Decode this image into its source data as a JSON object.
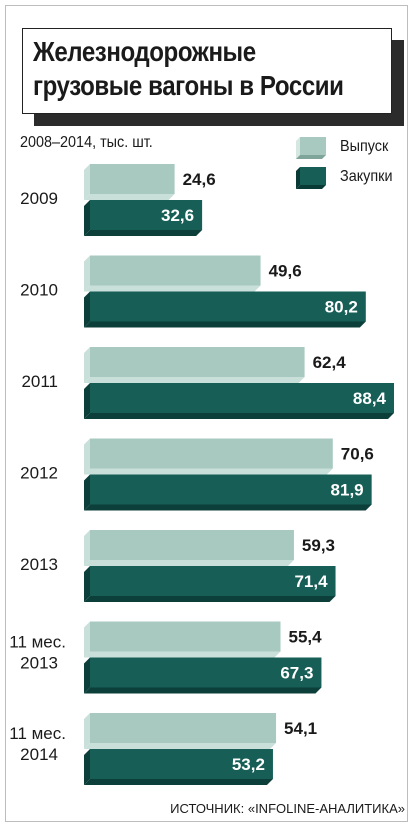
{
  "title_line1": "Железнодорожные",
  "title_line2": "грузовые вагоны в России",
  "subtitle": "2008–2014, тыс. шт.",
  "source": "ИСТОЧНИК: «INFOLINE-АНАЛИТИКА»",
  "colors": {
    "release": "#a8c9c0",
    "purchase": "#165e56",
    "release_side": "#c9dfd9",
    "purchase_side": "#0c3f3a"
  },
  "legend": [
    {
      "name": "Выпуск",
      "color": "#a8c9c0"
    },
    {
      "name": "Закупки",
      "color": "#165e56"
    }
  ],
  "chart_data": {
    "type": "bar",
    "orientation": "horizontal",
    "title": "Железнодорожные грузовые вагоны в России",
    "subtitle": "2008–2014, тыс. шт.",
    "categories": [
      {
        "line1": "2009",
        "line2": ""
      },
      {
        "line1": "2010",
        "line2": ""
      },
      {
        "line1": "2011",
        "line2": ""
      },
      {
        "line1": "2012",
        "line2": ""
      },
      {
        "line1": "2013",
        "line2": ""
      },
      {
        "line1": "11 мес.",
        "line2": "2013"
      },
      {
        "line1": "11 мес.",
        "line2": "2014"
      }
    ],
    "series": [
      {
        "name": "Выпуск",
        "values": [
          24.6,
          49.6,
          62.4,
          70.6,
          59.3,
          55.4,
          54.1
        ],
        "labels": [
          "24,6",
          "49,6",
          "62,4",
          "70,6",
          "59,3",
          "55,4",
          "54,1"
        ]
      },
      {
        "name": "Закупки",
        "values": [
          32.6,
          80.2,
          88.4,
          81.9,
          71.4,
          67.3,
          53.2
        ],
        "labels": [
          "32,6",
          "80,2",
          "88,4",
          "81,9",
          "71,4",
          "67,3",
          "53,2"
        ]
      }
    ],
    "legend_position": "top-right",
    "grid": false
  }
}
